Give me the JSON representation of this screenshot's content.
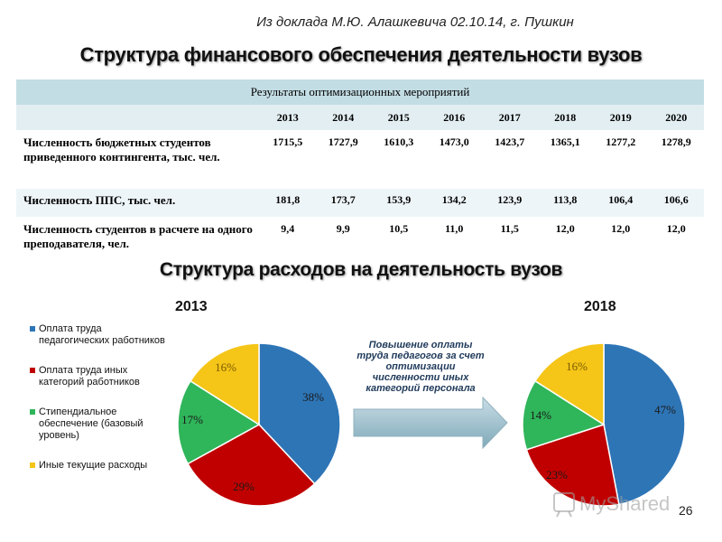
{
  "source_note": "Из доклада М.Ю. Алашкевича 02.10.14, г. Пушкин",
  "main_title": "Структура финансового обеспечения деятельности вузов",
  "table": {
    "header": "Результаты оптимизационных мероприятий",
    "years": [
      "2013",
      "2014",
      "2015",
      "2016",
      "2017",
      "2018",
      "2019",
      "2020"
    ],
    "rows": [
      {
        "label": "Численность бюджетных студентов приведенного контингента, тыс. чел.",
        "values": [
          "1715,5",
          "1727,9",
          "1610,3",
          "1473,0",
          "1423,7",
          "1365,1",
          "1277,2",
          "1278,9"
        ]
      },
      {
        "label": "Численность ППС, тыс. чел.",
        "values": [
          "181,8",
          "173,7",
          "153,9",
          "134,2",
          "123,9",
          "113,8",
          "106,4",
          "106,6"
        ]
      },
      {
        "label": "Численность студентов в расчете на одного преподавателя, чел.",
        "values": [
          "9,4",
          "9,9",
          "10,5",
          "11,0",
          "11,5",
          "12,0",
          "12,0",
          "12,0"
        ]
      }
    ]
  },
  "sub_title": "Структура расходов на деятельность вузов",
  "legend": [
    {
      "label": "Оплата труда педагогических работников",
      "color": "#2e75b6"
    },
    {
      "label": "Оплата труда иных категорий работников",
      "color": "#c00000"
    },
    {
      "label": "Стипендиальное обеспечение (базовый уровень)",
      "color": "#2fb55a"
    },
    {
      "label": "Иные текущие расходы",
      "color": "#f5c518"
    }
  ],
  "arrow_text": "Повышение оплаты труда педагогов за счет оптимизации численности иных категорий персонала",
  "chart_data": [
    {
      "type": "pie",
      "title": "2013",
      "categories": [
        "Оплата труда педагогических работников",
        "Оплата труда иных категорий работников",
        "Стипендиальное обеспечение (базовый уровень)",
        "Иные текущие расходы"
      ],
      "values": [
        38,
        29,
        17,
        16
      ],
      "labels": [
        "38%",
        "29%",
        "17%",
        "16%"
      ],
      "colors": [
        "#2e75b6",
        "#c00000",
        "#2fb55a",
        "#f5c518"
      ]
    },
    {
      "type": "pie",
      "title": "2018",
      "categories": [
        "Оплата труда педагогических работников",
        "Оплата труда иных категорий работников",
        "Стипендиальное обеспечение (базовый уровень)",
        "Иные текущие расходы"
      ],
      "values": [
        47,
        23,
        14,
        16
      ],
      "labels": [
        "47%",
        "23%",
        "14%",
        "16%"
      ],
      "colors": [
        "#2e75b6",
        "#c00000",
        "#2fb55a",
        "#f5c518"
      ]
    }
  ],
  "watermark": "MyShared",
  "page_number": "26"
}
